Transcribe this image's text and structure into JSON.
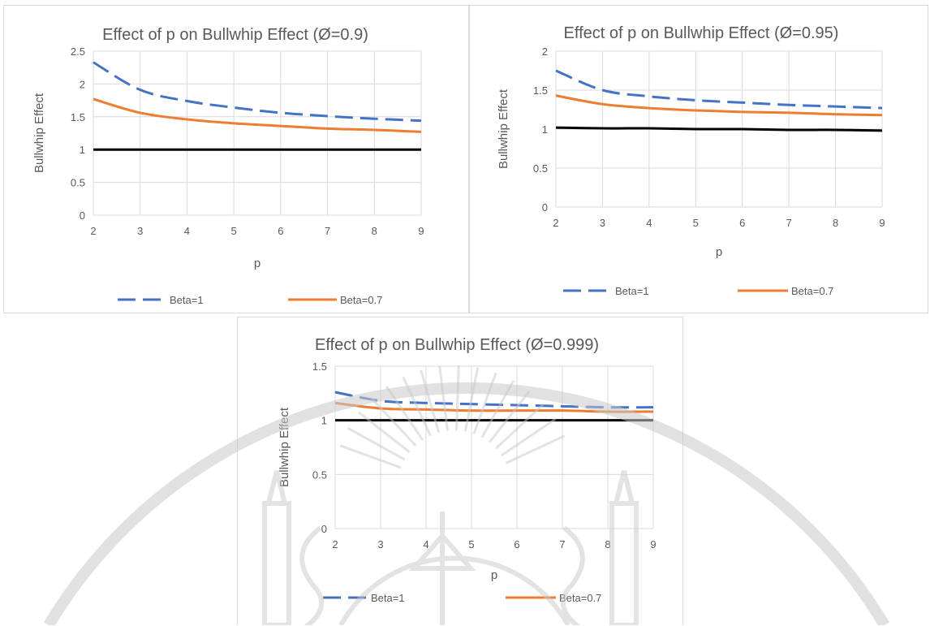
{
  "chart_data": [
    {
      "type": "line",
      "title": "Effect of p on Bullwhip Effect (Ø=0.9)",
      "xlabel": "p",
      "ylabel": "Bullwhip Effect",
      "x": [
        2,
        3,
        4,
        5,
        6,
        7,
        8,
        9
      ],
      "x_tick_labels": [
        "2",
        "3",
        "4",
        "5",
        "6",
        "7",
        "8",
        "9"
      ],
      "ylim": [
        0,
        2.5
      ],
      "y_tick_labels": [
        "0",
        "0.5",
        "1",
        "1.5",
        "2",
        "2.5"
      ],
      "grid": true,
      "legend": "bottom",
      "series": [
        {
          "name": "Beta=1",
          "color": "#4472c4",
          "dash": "dashed",
          "values": [
            2.33,
            1.91,
            1.74,
            1.64,
            1.56,
            1.51,
            1.47,
            1.44
          ]
        },
        {
          "name": "Beta=0.7",
          "color": "#ed7d31",
          "dash": "solid",
          "values": [
            1.77,
            1.56,
            1.46,
            1.4,
            1.36,
            1.32,
            1.3,
            1.27
          ]
        },
        {
          "name": "",
          "color": "#000000",
          "dash": "solid",
          "in_legend": false,
          "values": [
            1,
            1,
            1,
            1,
            1,
            1,
            1,
            1
          ]
        }
      ]
    },
    {
      "type": "line",
      "title": "Effect of p on Bullwhip Effect (Ø=0.95)",
      "xlabel": "p",
      "ylabel": "Bullwhip Effect",
      "x": [
        2,
        3,
        4,
        5,
        6,
        7,
        8,
        9
      ],
      "x_tick_labels": [
        "2",
        "3",
        "4",
        "5",
        "6",
        "7",
        "8",
        "9"
      ],
      "ylim": [
        0,
        2
      ],
      "y_tick_labels": [
        "0",
        "0.5",
        "1",
        "1.5",
        "2"
      ],
      "grid": true,
      "legend": "bottom",
      "series": [
        {
          "name": "Beta=1",
          "color": "#4472c4",
          "dash": "dashed",
          "values": [
            1.75,
            1.5,
            1.42,
            1.37,
            1.34,
            1.31,
            1.29,
            1.27
          ]
        },
        {
          "name": "Beta=0.7",
          "color": "#ed7d31",
          "dash": "solid",
          "values": [
            1.43,
            1.32,
            1.27,
            1.24,
            1.22,
            1.21,
            1.19,
            1.18
          ]
        },
        {
          "name": "",
          "color": "#000000",
          "dash": "solid",
          "in_legend": false,
          "values": [
            1.02,
            1.01,
            1.01,
            1.0,
            1.0,
            0.99,
            0.99,
            0.98
          ]
        }
      ]
    },
    {
      "type": "line",
      "title": "Effect of p on Bullwhip Effect (Ø=0.999)",
      "xlabel": "p",
      "ylabel": "Bullwhip Effect",
      "x": [
        2,
        3,
        4,
        5,
        6,
        7,
        8,
        9
      ],
      "x_tick_labels": [
        "2",
        "3",
        "4",
        "5",
        "6",
        "7",
        "8",
        "9"
      ],
      "ylim": [
        0,
        1.5
      ],
      "y_tick_labels": [
        "0",
        "0.5",
        "1",
        "1.5"
      ],
      "grid": true,
      "legend": "bottom",
      "series": [
        {
          "name": "Beta=1",
          "color": "#4472c4",
          "dash": "dashed",
          "values": [
            1.26,
            1.18,
            1.16,
            1.15,
            1.14,
            1.13,
            1.12,
            1.12
          ]
        },
        {
          "name": "Beta=0.7",
          "color": "#ed7d31",
          "dash": "solid",
          "values": [
            1.16,
            1.11,
            1.1,
            1.09,
            1.09,
            1.09,
            1.08,
            1.08
          ]
        },
        {
          "name": "",
          "color": "#000000",
          "dash": "solid",
          "in_legend": false,
          "values": [
            1,
            1,
            1,
            1,
            1,
            1,
            1,
            1
          ]
        }
      ]
    }
  ],
  "colors": {
    "grid": "#d9d9d9",
    "text": "#595959",
    "watermark": "#c8c8c8"
  },
  "icons": {
    "watermark": "university-seal-watermark-icon"
  }
}
